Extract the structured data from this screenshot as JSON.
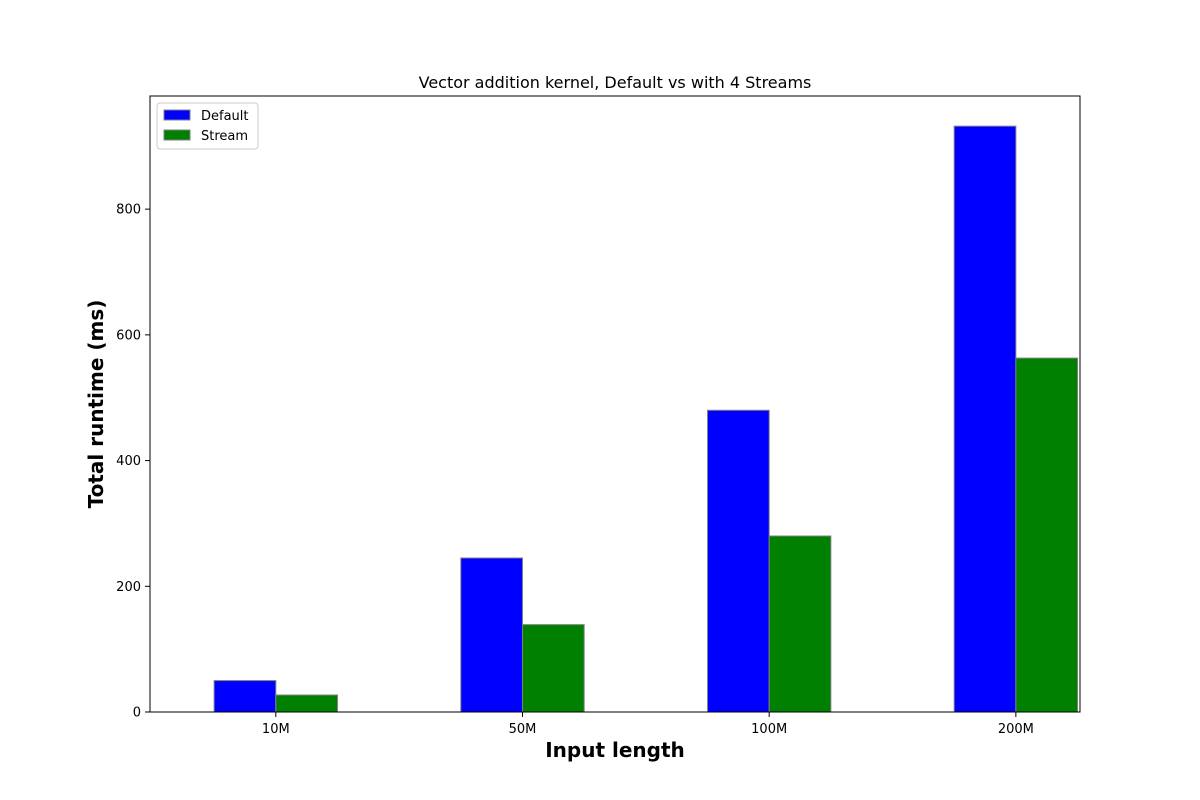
{
  "chart_data": {
    "type": "bar",
    "title": "Vector addition kernel, Default vs with 4 Streams",
    "xlabel": "Input length",
    "ylabel": "Total runtime (ms)",
    "categories": [
      "10M",
      "50M",
      "100M",
      "200M"
    ],
    "series": [
      {
        "name": "Default",
        "values": [
          50,
          245,
          480,
          932
        ],
        "color": "#0000ff"
      },
      {
        "name": "Stream",
        "values": [
          27,
          139,
          280,
          563
        ],
        "color": "#008000"
      }
    ],
    "ylim": [
      0,
      980
    ],
    "yticks": [
      0,
      200,
      400,
      600,
      800
    ],
    "grid": false,
    "legend_position": "upper-left",
    "bar_edge_color": "#808080"
  }
}
